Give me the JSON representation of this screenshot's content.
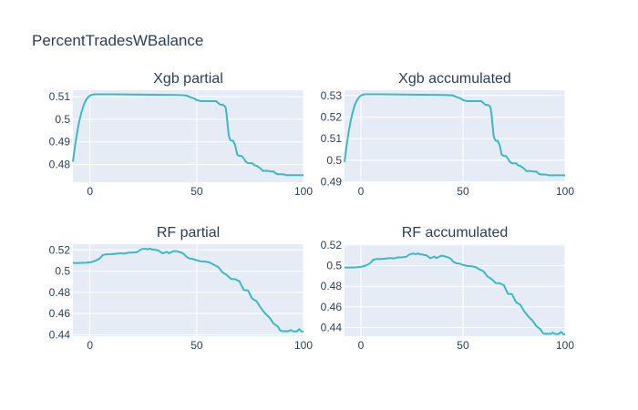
{
  "figure": {
    "title": "PercentTradesWBalance"
  },
  "colors": {
    "line": "#3eb8c2",
    "plot_bg": "#e5ecf6",
    "text": "#2a3f5f"
  },
  "chart_data": [
    {
      "type": "line",
      "title": "Xgb partial",
      "xlabel": "",
      "ylabel": "",
      "xlim": [
        -8,
        100
      ],
      "ylim": [
        0.4722,
        0.5128
      ],
      "xticks": [
        0,
        50,
        100
      ],
      "yticks": [
        0.48,
        0.49,
        0.5,
        0.51
      ],
      "ytick_labels": [
        "0.48",
        "0.49",
        "0.5",
        "0.51"
      ],
      "grid": true,
      "series": [
        {
          "x": [
            -8,
            -7,
            -6,
            -5,
            -4,
            -3,
            -2,
            -1,
            0,
            1,
            2,
            3,
            4,
            5,
            10,
            20,
            30,
            40,
            45,
            47,
            49,
            50,
            52,
            55,
            58,
            59,
            60,
            61,
            62,
            63,
            63.5,
            64,
            64.3,
            64.7,
            65,
            65.5,
            66,
            67,
            68,
            69,
            70,
            71,
            72,
            73,
            74,
            75,
            76,
            77,
            78,
            79,
            80,
            81,
            82,
            83,
            84,
            85,
            86,
            87,
            88,
            89,
            90,
            91,
            92,
            100
          ],
          "y": [
            0.4812,
            0.4882,
            0.4942,
            0.4992,
            0.5031,
            0.5061,
            0.5082,
            0.5096,
            0.5104,
            0.5108,
            0.511,
            0.511,
            0.511,
            0.511,
            0.511,
            0.5109,
            0.5108,
            0.5107,
            0.5105,
            0.5097,
            0.5091,
            0.5084,
            0.508,
            0.508,
            0.508,
            0.508,
            0.5072,
            0.5064,
            0.5064,
            0.5059,
            0.5052,
            0.5022,
            0.499,
            0.4955,
            0.4928,
            0.4912,
            0.4906,
            0.4905,
            0.4885,
            0.4843,
            0.4838,
            0.4838,
            0.4827,
            0.4812,
            0.4806,
            0.4806,
            0.4806,
            0.4797,
            0.4795,
            0.4788,
            0.4782,
            0.4772,
            0.4772,
            0.4772,
            0.4771,
            0.4769,
            0.4769,
            0.4761,
            0.4757,
            0.4757,
            0.4757,
            0.4756,
            0.4753,
            0.4753
          ]
        }
      ]
    },
    {
      "type": "line",
      "title": "Xgb accumulated",
      "xlabel": "",
      "ylabel": "",
      "xlim": [
        -8,
        100
      ],
      "ylim": [
        0.4898,
        0.5325
      ],
      "xticks": [
        0,
        50,
        100
      ],
      "yticks": [
        0.49,
        0.5,
        0.51,
        0.52,
        0.53
      ],
      "ytick_labels": [
        "0.49",
        "0.5",
        "0.51",
        "0.52",
        "0.53"
      ],
      "grid": true,
      "series": [
        {
          "x": [
            -8,
            -7,
            -6,
            -5,
            -4,
            -3,
            -2,
            -1,
            0,
            1,
            2,
            3,
            4,
            5,
            10,
            20,
            30,
            40,
            45,
            47,
            49,
            50,
            52,
            55,
            58,
            59,
            60,
            61,
            62,
            63,
            63.5,
            64,
            64.3,
            64.7,
            65,
            65.5,
            66,
            67,
            68,
            69,
            70,
            71,
            72,
            73,
            74,
            75,
            76,
            77,
            78,
            79,
            80,
            81,
            82,
            83,
            84,
            85,
            86,
            87,
            88,
            89,
            90,
            91,
            92,
            100
          ],
          "y": [
            0.4992,
            0.5066,
            0.5129,
            0.5182,
            0.5223,
            0.5255,
            0.5277,
            0.5291,
            0.53,
            0.5304,
            0.5306,
            0.5306,
            0.5306,
            0.5306,
            0.5306,
            0.5305,
            0.5304,
            0.5303,
            0.5301,
            0.5293,
            0.5286,
            0.5279,
            0.5274,
            0.5274,
            0.5274,
            0.5274,
            0.5266,
            0.5257,
            0.5257,
            0.5252,
            0.5245,
            0.5213,
            0.518,
            0.5143,
            0.5115,
            0.5098,
            0.5091,
            0.509,
            0.5069,
            0.5025,
            0.502,
            0.502,
            0.5008,
            0.4992,
            0.4986,
            0.4986,
            0.4986,
            0.4976,
            0.4974,
            0.4967,
            0.4961,
            0.495,
            0.495,
            0.495,
            0.4949,
            0.4947,
            0.4947,
            0.4938,
            0.4934,
            0.4934,
            0.4934,
            0.4933,
            0.493,
            0.493
          ]
        }
      ]
    },
    {
      "type": "line",
      "title": "RF partial",
      "xlabel": "",
      "ylabel": "",
      "xlim": [
        -8,
        100
      ],
      "ylim": [
        0.4387,
        0.5254
      ],
      "xticks": [
        0,
        50,
        100
      ],
      "yticks": [
        0.44,
        0.46,
        0.48,
        0.5,
        0.52
      ],
      "ytick_labels": [
        "0.44",
        "0.46",
        "0.48",
        "0.5",
        "0.52"
      ],
      "grid": true,
      "series": [
        {
          "x": [
            -8,
            -5,
            -2,
            0,
            2,
            4,
            5,
            6,
            8,
            10,
            12,
            14,
            16,
            18,
            20,
            22,
            23,
            24,
            25,
            26,
            27,
            28,
            29,
            30,
            31,
            32,
            33,
            34,
            35,
            36,
            37,
            38,
            39,
            40,
            41,
            42,
            43,
            44,
            45,
            46,
            47,
            48,
            49,
            50,
            52,
            54,
            56,
            58,
            60,
            62,
            64,
            66,
            68,
            70,
            72,
            74,
            76,
            78,
            80,
            82,
            84,
            86,
            88,
            89,
            90,
            91,
            92,
            93,
            94,
            95,
            96,
            97,
            98,
            99,
            100
          ],
          "y": [
            0.5077,
            0.5077,
            0.5079,
            0.5083,
            0.5093,
            0.5112,
            0.5127,
            0.5152,
            0.5159,
            0.516,
            0.5163,
            0.5168,
            0.5165,
            0.5174,
            0.5176,
            0.5179,
            0.5192,
            0.5205,
            0.521,
            0.521,
            0.5206,
            0.5213,
            0.5204,
            0.5205,
            0.5198,
            0.5196,
            0.5182,
            0.5167,
            0.5175,
            0.5183,
            0.5168,
            0.5178,
            0.5188,
            0.519,
            0.5186,
            0.5179,
            0.5173,
            0.5161,
            0.5138,
            0.5125,
            0.5117,
            0.5116,
            0.5108,
            0.5102,
            0.5092,
            0.509,
            0.5082,
            0.506,
            0.504,
            0.499,
            0.4965,
            0.4927,
            0.4924,
            0.4905,
            0.4823,
            0.4818,
            0.474,
            0.4718,
            0.4653,
            0.4602,
            0.4564,
            0.4506,
            0.4478,
            0.4443,
            0.4434,
            0.4434,
            0.4434,
            0.4434,
            0.4445,
            0.4434,
            0.4431,
            0.4434,
            0.4453,
            0.4434,
            0.4426
          ]
        }
      ]
    },
    {
      "type": "line",
      "title": "RF accumulated",
      "xlabel": "",
      "ylabel": "",
      "xlim": [
        -8,
        100
      ],
      "ylim": [
        0.4316,
        0.5208
      ],
      "xticks": [
        0,
        50,
        100
      ],
      "yticks": [
        0.44,
        0.46,
        0.48,
        0.5,
        0.52
      ],
      "ytick_labels": [
        "0.44",
        "0.46",
        "0.48",
        "0.5",
        "0.52"
      ],
      "grid": true,
      "series": [
        {
          "x": [
            -8,
            -5,
            -2,
            0,
            2,
            4,
            5,
            6,
            8,
            10,
            12,
            14,
            16,
            18,
            20,
            22,
            23,
            24,
            25,
            26,
            27,
            28,
            29,
            30,
            31,
            32,
            33,
            34,
            35,
            36,
            37,
            38,
            39,
            40,
            41,
            42,
            43,
            44,
            45,
            46,
            47,
            48,
            49,
            50,
            52,
            54,
            56,
            58,
            60,
            62,
            64,
            66,
            68,
            70,
            72,
            74,
            76,
            78,
            80,
            82,
            84,
            86,
            88,
            89,
            90,
            91,
            92,
            93,
            94,
            95,
            96,
            97,
            98,
            99,
            100
          ],
          "y": [
            0.4982,
            0.4982,
            0.4984,
            0.4988,
            0.4998,
            0.5017,
            0.5032,
            0.5057,
            0.5064,
            0.5065,
            0.5068,
            0.5073,
            0.507,
            0.5079,
            0.5081,
            0.5084,
            0.5097,
            0.511,
            0.5115,
            0.5115,
            0.5111,
            0.5118,
            0.5109,
            0.511,
            0.5103,
            0.5101,
            0.5087,
            0.5072,
            0.508,
            0.5088,
            0.5073,
            0.5083,
            0.5093,
            0.5095,
            0.5091,
            0.5084,
            0.5078,
            0.5066,
            0.5043,
            0.503,
            0.5022,
            0.5021,
            0.5013,
            0.5007,
            0.4997,
            0.4995,
            0.4987,
            0.4965,
            0.4945,
            0.4895,
            0.487,
            0.4832,
            0.4829,
            0.481,
            0.4728,
            0.4723,
            0.4645,
            0.4623,
            0.4558,
            0.4507,
            0.4469,
            0.4411,
            0.4383,
            0.4348,
            0.4339,
            0.4339,
            0.4339,
            0.4339,
            0.435,
            0.4339,
            0.4336,
            0.4339,
            0.4358,
            0.4339,
            0.4331
          ]
        }
      ]
    }
  ]
}
